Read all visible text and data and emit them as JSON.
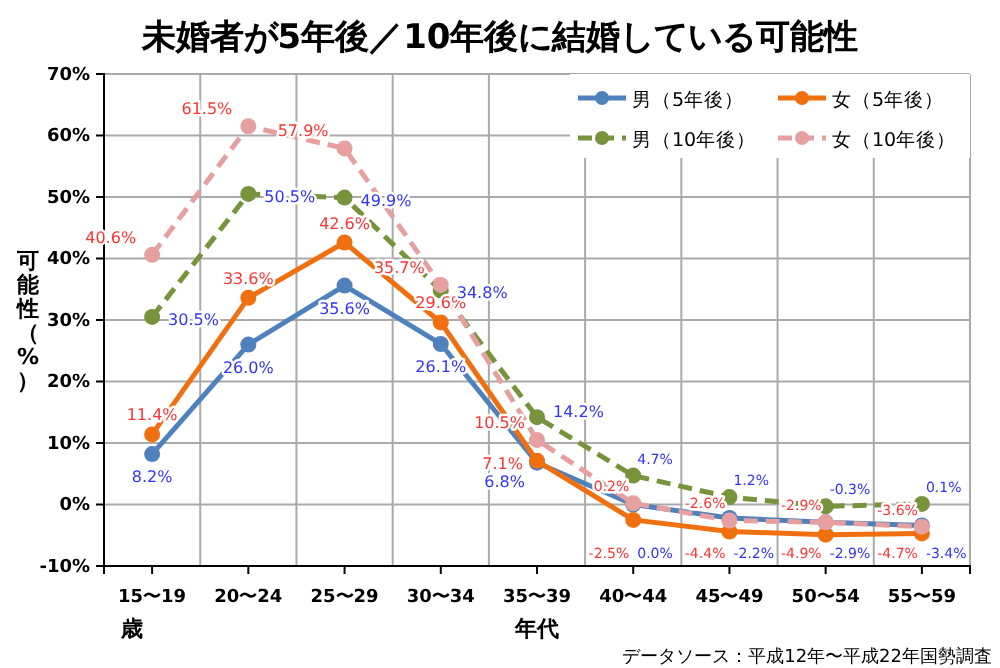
{
  "chart_data": {
    "type": "line",
    "title": "未婚者が5年後／10年後に結婚している可能性",
    "xlabel": "年代",
    "ylabel": "可能性（%）",
    "categories": [
      "15〜19",
      "20〜24",
      "25〜29",
      "30〜34",
      "35〜39",
      "40〜44",
      "45〜49",
      "50〜54",
      "55〜59"
    ],
    "series": [
      {
        "name": "男（5年後）",
        "color": "#4f81bd",
        "line_style": "solid",
        "values": [
          8.2,
          26.0,
          35.6,
          26.1,
          6.8,
          0.0,
          -2.2,
          -2.9,
          -3.4
        ],
        "value_labels": [
          "8.2%",
          "26.0%",
          "35.6%",
          "26.1%",
          "6.8%",
          "0.0%",
          "-2.2%",
          "-2.9%",
          "-3.4%"
        ]
      },
      {
        "name": "女（5年後）",
        "color": "#f07010",
        "line_style": "solid",
        "values": [
          11.4,
          33.6,
          42.6,
          29.6,
          7.1,
          -2.5,
          -4.4,
          -4.9,
          -4.7
        ],
        "value_labels": [
          "11.4%",
          "33.6%",
          "42.6%",
          "29.6%",
          "7.1%",
          "-2.5%",
          "-4.4%",
          "-4.9%",
          "-4.7%"
        ]
      },
      {
        "name": "男（10年後）",
        "color": "#77933c",
        "line_style": "dashed",
        "values": [
          30.5,
          50.5,
          49.9,
          34.8,
          14.2,
          4.7,
          1.2,
          -0.3,
          0.1
        ],
        "value_labels": [
          "30.5%",
          "50.5%",
          "49.9%",
          "34.8%",
          "14.2%",
          "4.7%",
          "1.2%",
          "-0.3%",
          "0.1%"
        ]
      },
      {
        "name": "女（10年後）",
        "color": "#e6a0a0",
        "line_style": "dashed",
        "values": [
          40.6,
          61.5,
          57.9,
          35.7,
          10.5,
          0.2,
          -2.6,
          -2.9,
          -3.6
        ],
        "value_labels": [
          "40.6%",
          "61.5%",
          "57.9%",
          "35.7%",
          "10.5%",
          "0.2%",
          "-2.6%",
          "-2.9%",
          "-3.6%"
        ]
      }
    ],
    "ylim": [
      -10,
      70
    ],
    "yticks": [
      {
        "value": -10,
        "label": "-10%"
      },
      {
        "value": 0,
        "label": "0%"
      },
      {
        "value": 10,
        "label": "10%"
      },
      {
        "value": 20,
        "label": "20%"
      },
      {
        "value": 30,
        "label": "30%"
      },
      {
        "value": 40,
        "label": "40%"
      },
      {
        "value": 50,
        "label": "50%"
      },
      {
        "value": 60,
        "label": "60%"
      },
      {
        "value": 70,
        "label": "70%"
      }
    ],
    "grid": true,
    "legend": "top right",
    "marker": "circle",
    "annotations": [
      "歳",
      "データソース：平成12年〜平成22年国勢調査"
    ]
  }
}
